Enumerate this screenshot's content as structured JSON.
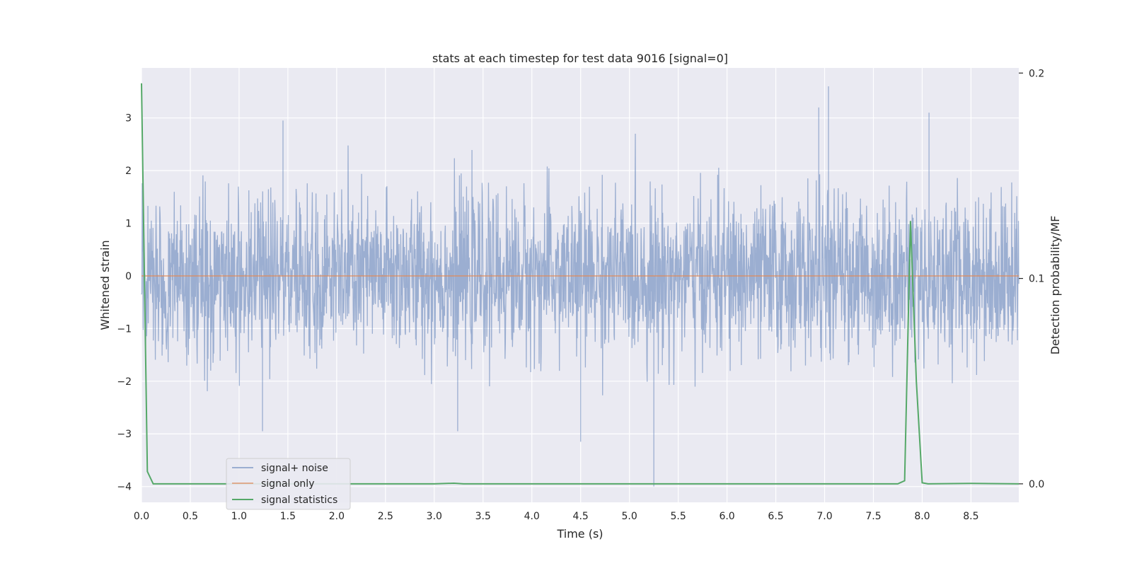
{
  "chart_data": {
    "type": "line",
    "title": "stats at each timestep for test data 9016 [signal=0]",
    "xlabel": "Time (s)",
    "ylabel": "Whitened strain",
    "y2label": "Detection probability/MF",
    "xlim": [
      0,
      8.99
    ],
    "ylim": [
      -4.3,
      3.95
    ],
    "y2lim": [
      -0.009,
      0.2025
    ],
    "xticks": [
      "0.0",
      "0.5",
      "1.0",
      "1.5",
      "2.0",
      "2.5",
      "3.0",
      "3.5",
      "4.0",
      "4.5",
      "5.0",
      "5.5",
      "6.0",
      "6.5",
      "7.0",
      "7.5",
      "8.0",
      "8.5"
    ],
    "yticks": [
      "−4",
      "−3",
      "−2",
      "−1",
      "0",
      "1",
      "2",
      "3"
    ],
    "y2ticks": [
      "0.0",
      "0.1",
      "0.2"
    ],
    "grid": true,
    "legend_position": "lower-left",
    "colors": {
      "signal_noise": "#4c72b0",
      "signal_only": "#dd8452",
      "signal_statistics": "#55a868",
      "background": "#eaeaf2",
      "grid": "#ffffff"
    },
    "series": [
      {
        "name": "signal+ noise",
        "axis": "left",
        "description_values": "whitened noise, approximately ±1.5 envelope",
        "peaks": [
          {
            "x": 7.04,
            "y": 3.6
          },
          {
            "x": 6.94,
            "y": 3.2
          },
          {
            "x": 8.07,
            "y": 3.1
          },
          {
            "x": 1.45,
            "y": 2.95
          },
          {
            "x": 5.25,
            "y": -4.0
          },
          {
            "x": 4.5,
            "y": -3.15
          },
          {
            "x": 1.24,
            "y": -2.95
          },
          {
            "x": 3.24,
            "y": -2.95
          }
        ]
      },
      {
        "name": "signal only",
        "axis": "left",
        "x": [
          0,
          8.99
        ],
        "y": [
          0,
          0
        ]
      },
      {
        "name": "signal statistics",
        "axis": "right",
        "x": [
          0.0,
          0.06,
          0.12,
          0.5,
          1.0,
          2.0,
          3.0,
          3.2,
          3.3,
          4.0,
          5.0,
          6.0,
          7.0,
          7.75,
          7.82,
          7.88,
          7.94,
          8.0,
          8.06,
          8.5,
          8.99
        ],
        "y": [
          0.195,
          0.006,
          0.0,
          0.0,
          0.0,
          0.0,
          0.0,
          0.0003,
          0.0,
          0.0,
          0.0,
          0.0,
          0.0,
          0.0,
          0.0015,
          0.128,
          0.05,
          0.0005,
          0.0,
          0.0002,
          0.0
        ]
      }
    ]
  }
}
